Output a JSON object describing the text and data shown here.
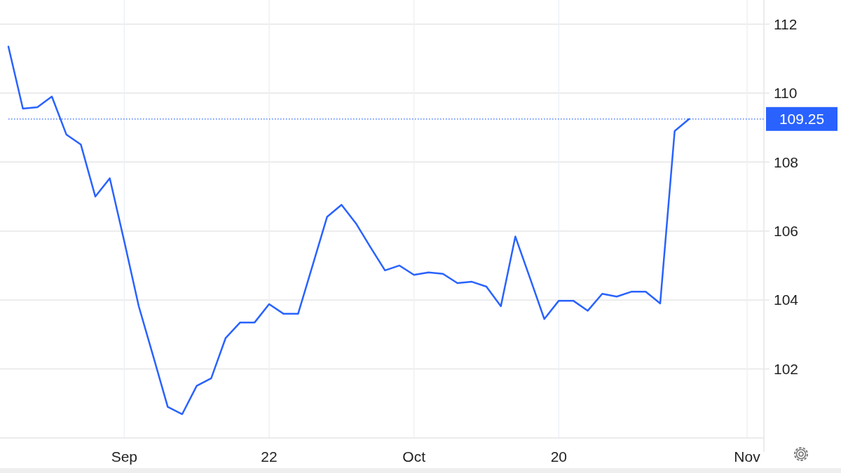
{
  "chart_data": {
    "type": "line",
    "categories": [
      null,
      null,
      null,
      null,
      null,
      null,
      null,
      null,
      "Sep",
      null,
      null,
      null,
      null,
      null,
      null,
      null,
      null,
      null,
      "22",
      null,
      null,
      null,
      null,
      null,
      null,
      null,
      null,
      null,
      "Oct",
      null,
      null,
      null,
      null,
      null,
      null,
      null,
      null,
      null,
      "20",
      null,
      null,
      null,
      null,
      null,
      null,
      null,
      null,
      null,
      null,
      null,
      null,
      "Nov"
    ],
    "series": [
      {
        "color": "#2962ff",
        "values": [
          111.35,
          109.55,
          109.59,
          109.9,
          108.8,
          108.51,
          107.0,
          107.53,
          105.7,
          103.82,
          102.37,
          100.9,
          100.69,
          101.51,
          101.73,
          102.9,
          103.35,
          103.35,
          103.88,
          103.6,
          103.6,
          105.0,
          106.41,
          106.76,
          106.22,
          105.53,
          104.86,
          105.0,
          104.73,
          104.8,
          104.76,
          104.49,
          104.53,
          104.39,
          103.82,
          105.84,
          104.65,
          103.45,
          103.98,
          103.98,
          103.69,
          104.18,
          104.1,
          104.24,
          104.24,
          103.9,
          108.9,
          109.25,
          null,
          null,
          null,
          null
        ]
      }
    ],
    "ylim": [
      100,
      112.7
    ],
    "yticks": [
      102,
      104,
      106,
      108,
      110,
      112
    ],
    "ref_lines": [
      {
        "axis": "y",
        "value": 109.25,
        "label": "109.25",
        "color": "#2962ff",
        "line_style": "dotted"
      }
    ],
    "grid": true,
    "marker": "none",
    "line_style": "solid"
  }
}
